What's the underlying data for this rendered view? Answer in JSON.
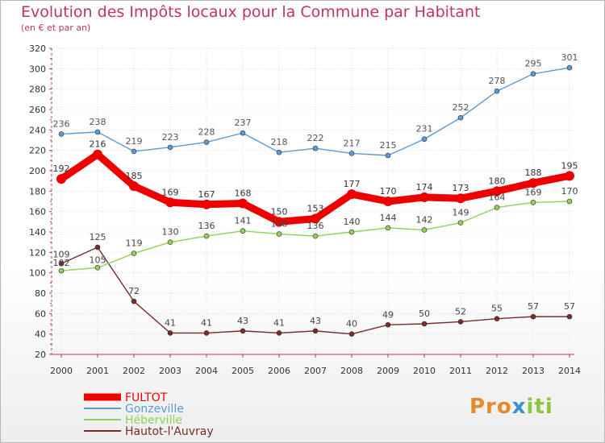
{
  "header": {
    "title": "Evolution des Impôts locaux pour la Commune par Habitant",
    "subtitle": "(en € et par an)"
  },
  "logo": {
    "part1": "Pro",
    "part2": "x",
    "part3": "iti"
  },
  "chart_data": {
    "type": "line",
    "title": "Evolution des Impôts locaux pour la Commune par Habitant",
    "subtitle": "(en € et par an)",
    "xlabel": "",
    "ylabel": "",
    "x": [
      "2000",
      "2001",
      "2002",
      "2003",
      "2004",
      "2005",
      "2006",
      "2007",
      "2008",
      "2009",
      "2010",
      "2011",
      "2012",
      "2013",
      "2014"
    ],
    "ylim": [
      20,
      320
    ],
    "yticks": [
      20,
      40,
      60,
      80,
      100,
      120,
      140,
      160,
      180,
      200,
      220,
      240,
      260,
      280,
      300,
      320
    ],
    "grid": true,
    "legend_position": "bottom-left",
    "series": [
      {
        "name": "FULTOT",
        "color": "#ee0000",
        "values": [
          192,
          216,
          185,
          169,
          167,
          168,
          150,
          153,
          177,
          170,
          174,
          173,
          180,
          188,
          195
        ]
      },
      {
        "name": "Gonzeville",
        "color": "#5b9bd5",
        "values": [
          236,
          238,
          219,
          223,
          228,
          237,
          218,
          222,
          217,
          215,
          231,
          252,
          278,
          295,
          301
        ]
      },
      {
        "name": "Héberville",
        "color": "#8fd15a",
        "values": [
          102,
          105,
          119,
          130,
          136,
          141,
          138,
          136,
          140,
          144,
          142,
          149,
          164,
          169,
          170
        ]
      },
      {
        "name": "Hautot-l'Auvray",
        "color": "#7a2a2a",
        "values": [
          109,
          125,
          72,
          41,
          41,
          43,
          41,
          43,
          40,
          49,
          50,
          52,
          55,
          57,
          57
        ]
      }
    ]
  }
}
